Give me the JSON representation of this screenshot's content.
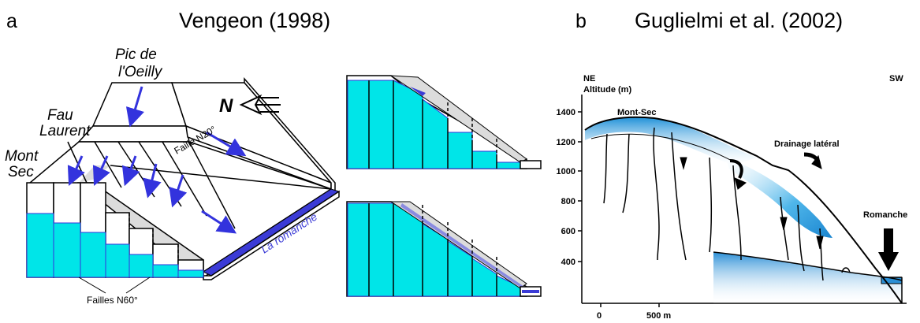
{
  "panel_a": {
    "letter": "a",
    "title": "Vengeon (1998)",
    "labels": {
      "pic": "Pic de",
      "oeilly": "l'Oeilly",
      "fau": "Fau",
      "laurent": "Laurent",
      "mont": "Mont",
      "sec": "Sec",
      "north": "N",
      "faille_n20": "Faille N20°",
      "failles_n60": "Failles N60°",
      "river": "La romanche"
    }
  },
  "panel_b": {
    "letter": "b",
    "title": "Guglielmi et al. (2002)",
    "labels": {
      "ne": "NE",
      "altitude": "Altitude (m)",
      "sw": "SW",
      "mont_sec": "Mont-Sec",
      "drainage": "Drainage latéral",
      "romanche": "Romanche",
      "scale_500": "500 m"
    },
    "y_ticks": [
      "1400",
      "1200",
      "1000",
      "800",
      "600",
      "400"
    ],
    "x_ticks": [
      "0"
    ]
  },
  "colors": {
    "water": "#00e5e8",
    "arrow": "#3333dd",
    "river": "#3b3bd6",
    "fault_zone": "#dcdcdc",
    "aquifer_blue": "#1a8fd6",
    "outline": "#000000"
  }
}
